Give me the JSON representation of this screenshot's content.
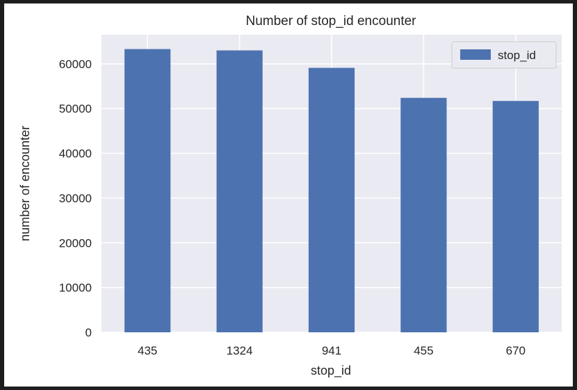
{
  "chart_data": {
    "type": "bar",
    "title": "Number of stop_id encounter",
    "xlabel": "stop_id",
    "ylabel": "number of encounter",
    "categories": [
      "435",
      "1324",
      "941",
      "455",
      "670"
    ],
    "series": [
      {
        "name": "stop_id",
        "values": [
          63300,
          63000,
          59100,
          52400,
          51700
        ],
        "color": "#4c72b0"
      }
    ],
    "ylim": [
      0,
      66500
    ],
    "yticks": [
      0,
      10000,
      20000,
      30000,
      40000,
      50000,
      60000
    ],
    "grid": true,
    "legend_position": "top-right",
    "colors": {
      "plot_background": "#eaeaf2",
      "grid": "#ffffff",
      "frame_border": "#1e1e1e"
    }
  }
}
